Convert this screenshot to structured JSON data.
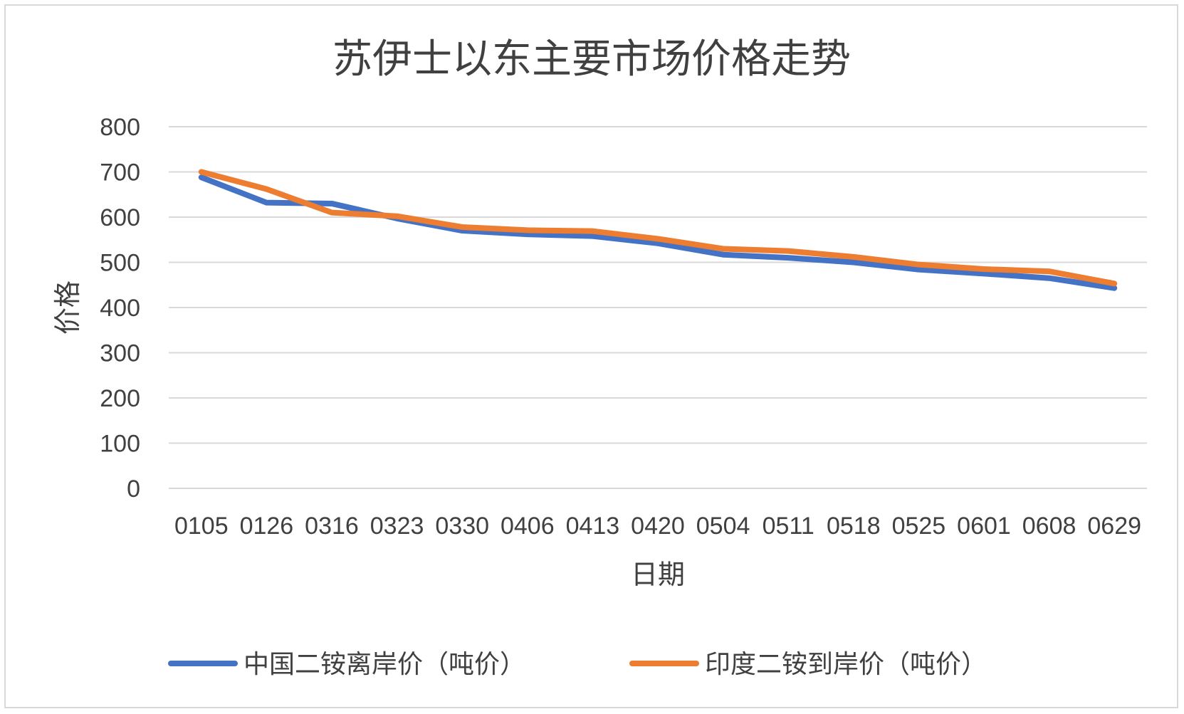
{
  "chart_data": {
    "type": "line",
    "title": "苏伊士以东主要市场价格走势",
    "xlabel": "日期",
    "ylabel": "价格",
    "ylim": [
      0,
      800
    ],
    "yticks": [
      "0",
      "100",
      "200",
      "300",
      "400",
      "500",
      "600",
      "700",
      "800"
    ],
    "grid": true,
    "legend_position": "bottom",
    "categories": [
      "0105",
      "0126",
      "0316",
      "0323",
      "0330",
      "0406",
      "0413",
      "0420",
      "0504",
      "0511",
      "0518",
      "0525",
      "0601",
      "0608",
      "0629"
    ],
    "series": [
      {
        "name": "中国二铵离岸价（吨价）",
        "color": "#4472C4",
        "values": [
          688,
          632,
          630,
          597,
          570,
          562,
          558,
          542,
          517,
          510,
          500,
          484,
          475,
          465,
          443
        ]
      },
      {
        "name": "印度二铵到岸价（吨价）",
        "color": "#ED7D31",
        "values": [
          700,
          662,
          610,
          602,
          578,
          571,
          569,
          552,
          530,
          525,
          512,
          495,
          485,
          480,
          453
        ]
      }
    ]
  }
}
